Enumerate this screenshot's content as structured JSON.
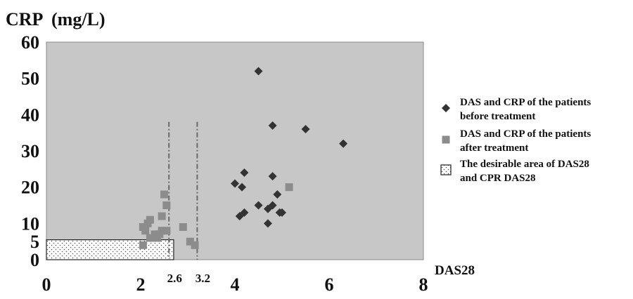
{
  "chart_data": {
    "type": "scatter",
    "title": "",
    "ylabel": "CRP  (mg/L)",
    "xlabel": "DAS28",
    "xlim": [
      0,
      8
    ],
    "ylim": [
      0,
      60
    ],
    "x_ticks": [
      "0",
      "2",
      "4",
      "6",
      "8"
    ],
    "y_ticks": [
      "60",
      "50",
      "40",
      "30",
      "20",
      "10",
      "5",
      "0"
    ],
    "y_tick_values": [
      60,
      50,
      40,
      30,
      20,
      10,
      5,
      0
    ],
    "x_tick_values": [
      0,
      2,
      4,
      6,
      8
    ],
    "threshold_labels": [
      "2.6",
      "3.2"
    ],
    "threshold_values": [
      2.6,
      3.2
    ],
    "threshold_ymax": 38,
    "desirable_area": {
      "x": [
        0,
        2.7
      ],
      "y": [
        0,
        5.5
      ]
    },
    "grid": false,
    "legend_position": "right",
    "series": [
      {
        "name": "DAS and CRP of the patients before treatment",
        "marker": "diamond",
        "color": "#333333",
        "points": [
          [
            4.5,
            52
          ],
          [
            4.8,
            37
          ],
          [
            5.5,
            36
          ],
          [
            6.3,
            32
          ],
          [
            4.2,
            24
          ],
          [
            4.8,
            23
          ],
          [
            4.0,
            21
          ],
          [
            4.15,
            20
          ],
          [
            4.9,
            18
          ],
          [
            4.5,
            15
          ],
          [
            4.8,
            15
          ],
          [
            4.7,
            14
          ],
          [
            4.2,
            13
          ],
          [
            4.95,
            13
          ],
          [
            5.0,
            13
          ],
          [
            4.1,
            12
          ],
          [
            4.7,
            10
          ]
        ]
      },
      {
        "name": "DAS and CRP of the patients after treatment",
        "marker": "square",
        "color": "#8c8c8c",
        "points": [
          [
            5.15,
            20
          ],
          [
            2.5,
            18
          ],
          [
            2.55,
            15
          ],
          [
            2.45,
            12
          ],
          [
            2.2,
            11
          ],
          [
            2.15,
            10
          ],
          [
            2.05,
            9
          ],
          [
            2.1,
            8
          ],
          [
            2.45,
            8
          ],
          [
            2.55,
            8
          ],
          [
            2.9,
            9
          ],
          [
            2.3,
            7
          ],
          [
            2.4,
            7
          ],
          [
            2.2,
            6
          ],
          [
            2.35,
            6
          ],
          [
            3.05,
            5
          ],
          [
            3.15,
            4
          ],
          [
            2.05,
            4
          ]
        ]
      }
    ],
    "legend": [
      {
        "marker": "diamond",
        "lines": [
          "DAS and CRP of the patients",
          "before treatment"
        ]
      },
      {
        "marker": "square",
        "lines": [
          "DAS and CRP of the patients",
          "after treatment"
        ]
      },
      {
        "marker": "dotted-box",
        "lines": [
          "The desirable area of DAS28",
          "and CPR DAS28"
        ]
      }
    ],
    "colors": {
      "plot_background": "#c7c7c7",
      "before": "#333333",
      "after": "#8c8c8c",
      "threshold_line": "#6a6a6a"
    }
  }
}
